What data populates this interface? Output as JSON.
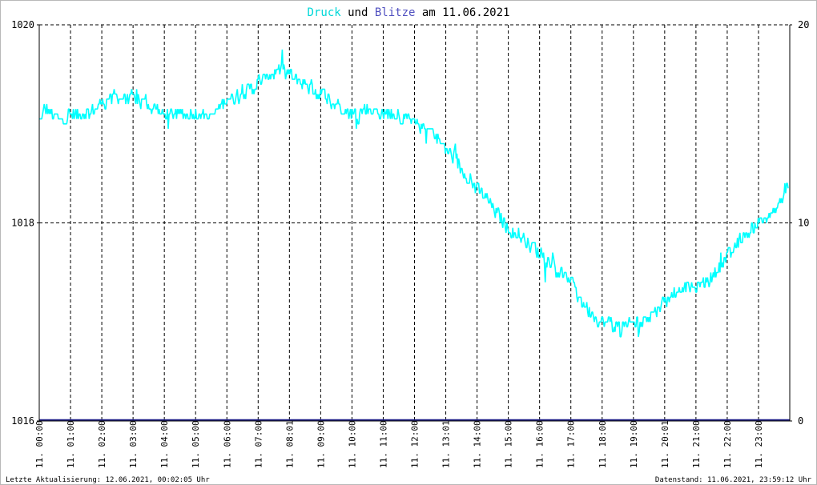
{
  "title": {
    "part1": "Druck",
    "part2": " und ",
    "part3": "Blitze",
    "part4": " am 11.06.2021"
  },
  "footer": {
    "left": "Letzte Aktualisierung: 12.06.2021, 00:02:05 Uhr",
    "right": "Datenstand: 11.06.2021, 23:59:12 Uhr"
  },
  "colors": {
    "druck": "#00ffff",
    "blitze": "#222288",
    "title_druck": "#00d8d8",
    "title_blitze": "#5050c0",
    "grid": "#000000"
  },
  "chart_data": {
    "type": "line",
    "title": "Druck und Blitze am 11.06.2021",
    "y_left": {
      "ylim": [
        1016,
        1020
      ],
      "ticks": [
        "1016",
        "1018",
        "1020"
      ]
    },
    "y_right": {
      "ylim": [
        0,
        20
      ],
      "ticks": [
        "0",
        "10",
        "20"
      ]
    },
    "x_range": [
      0,
      24
    ],
    "x_ticks": [
      {
        "hour": 0,
        "label": "11. 00:00"
      },
      {
        "hour": 1,
        "label": "11. 01:00"
      },
      {
        "hour": 2,
        "label": "11. 02:00"
      },
      {
        "hour": 3,
        "label": "11. 03:00"
      },
      {
        "hour": 4,
        "label": "11. 04:00"
      },
      {
        "hour": 5,
        "label": "11. 05:00"
      },
      {
        "hour": 6,
        "label": "11. 06:00"
      },
      {
        "hour": 7,
        "label": "11. 07:00"
      },
      {
        "hour": 8,
        "label": "11. 08:01"
      },
      {
        "hour": 9,
        "label": "11. 09:00"
      },
      {
        "hour": 10,
        "label": "11. 10:00"
      },
      {
        "hour": 11,
        "label": "11. 11:00"
      },
      {
        "hour": 12,
        "label": "11. 12:00"
      },
      {
        "hour": 13,
        "label": "11. 13:01"
      },
      {
        "hour": 14,
        "label": "11. 14:00"
      },
      {
        "hour": 15,
        "label": "11. 15:00"
      },
      {
        "hour": 16,
        "label": "11. 16:00"
      },
      {
        "hour": 17,
        "label": "11. 17:00"
      },
      {
        "hour": 18,
        "label": "11. 18:00"
      },
      {
        "hour": 19,
        "label": "11. 19:00"
      },
      {
        "hour": 20,
        "label": "11. 20:01"
      },
      {
        "hour": 21,
        "label": "11. 21:00"
      },
      {
        "hour": 22,
        "label": "11. 22:00"
      },
      {
        "hour": 23,
        "label": "11. 23:00"
      }
    ],
    "grid": true,
    "series": [
      {
        "name": "Druck",
        "axis": "left",
        "x": [
          0,
          0.25,
          0.5,
          1,
          1.5,
          2,
          2.5,
          3,
          3.5,
          4,
          4.5,
          5,
          5.5,
          6,
          6.5,
          7,
          7.5,
          7.75,
          8,
          8.5,
          9,
          9.5,
          10,
          10.5,
          11,
          11.5,
          12,
          12.5,
          13,
          13.5,
          14,
          14.5,
          15,
          15.5,
          16,
          16.5,
          17,
          17.5,
          18,
          18.5,
          19,
          19.5,
          20,
          20.5,
          21,
          21.5,
          22,
          22.5,
          23,
          23.5,
          23.95
        ],
        "y": [
          1019.05,
          1019.15,
          1019.05,
          1019.1,
          1019.1,
          1019.2,
          1019.28,
          1019.25,
          1019.2,
          1019.1,
          1019.1,
          1019.12,
          1019.05,
          1019.25,
          1019.3,
          1019.4,
          1019.52,
          1019.55,
          1019.48,
          1019.4,
          1019.3,
          1019.2,
          1019.1,
          1019.15,
          1019.1,
          1019.1,
          1019.0,
          1018.95,
          1018.75,
          1018.55,
          1018.35,
          1018.15,
          1017.95,
          1017.85,
          1017.7,
          1017.55,
          1017.4,
          1017.15,
          1017.0,
          1016.95,
          1016.98,
          1017.05,
          1017.2,
          1017.35,
          1017.35,
          1017.45,
          1017.65,
          1017.85,
          1018.0,
          1018.1,
          1018.4
        ]
      },
      {
        "name": "Blitze",
        "axis": "right",
        "x": [
          0,
          24
        ],
        "y": [
          0,
          0
        ]
      }
    ]
  }
}
